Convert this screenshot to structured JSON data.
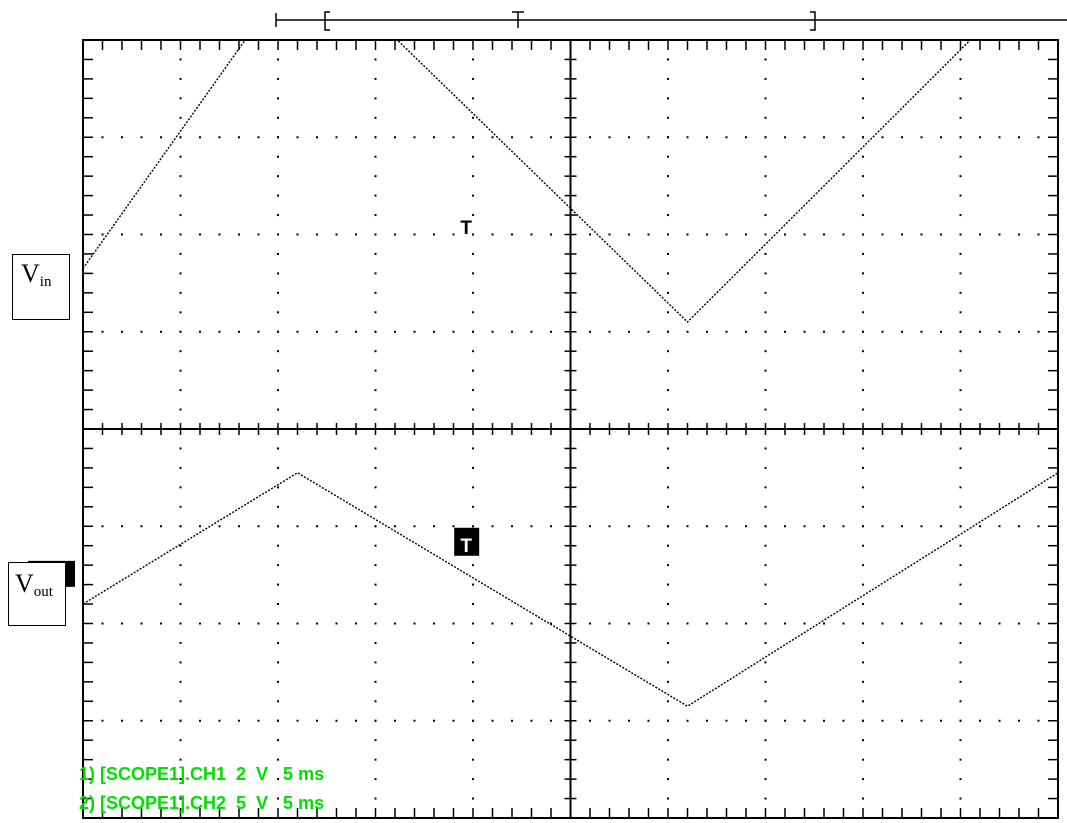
{
  "colors": {
    "background": "#ffffff",
    "grid": "#000000",
    "trace": "#000000",
    "readout": "#00e000"
  },
  "channels": [
    {
      "marker": "1->",
      "label_main": "V",
      "label_sub": "in",
      "marker_style": "plain"
    },
    {
      "marker": "2->",
      "label_main": "V",
      "label_sub": "out",
      "marker_style": "inverted"
    }
  ],
  "trigger_symbol": "T",
  "readout": [
    "1) [SCOPE1].CH1  2  V   5 ms",
    "2) [SCOPE1].CH2  5  V   5 ms"
  ],
  "chart_data": {
    "type": "line",
    "grid": true,
    "x_divisions": 10,
    "y_divisions": 8,
    "time_per_div_ms": 5,
    "xlim_div": [
      0,
      10
    ],
    "series": [
      {
        "name": "CH1",
        "volts_per_div": 2,
        "x_div": [
          0,
          2.3,
          6.2,
          10,
          13.9
        ],
        "y_div": [
          0.15,
          3.4,
          -0.4,
          3.4,
          -0.4
        ],
        "y_range_div": [
          -0.4,
          3.4
        ],
        "center_div": 1.5
      },
      {
        "name": "CH2",
        "volts_per_div": 5,
        "x_div": [
          0,
          2.2,
          6.2,
          10,
          13.9
        ],
        "y_div": [
          -0.3,
          1.05,
          -1.35,
          1.05,
          -1.35
        ],
        "y_range_div": [
          -1.35,
          1.05
        ],
        "center_div": -1.5
      }
    ]
  }
}
